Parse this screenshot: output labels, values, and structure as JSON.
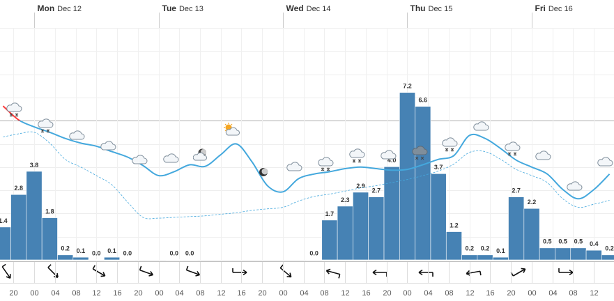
{
  "chart_data": {
    "type": "meteogram",
    "xlim": [
      -6.59,
      111.87
    ],
    "xticks": [
      {
        "value": -4,
        "label": "20"
      },
      {
        "value": 0,
        "label": "00"
      },
      {
        "value": 4,
        "label": "04"
      },
      {
        "value": 8,
        "label": "08"
      },
      {
        "value": 12,
        "label": "12"
      },
      {
        "value": 16,
        "label": "16"
      },
      {
        "value": 20,
        "label": "20"
      },
      {
        "value": 24,
        "label": "00"
      },
      {
        "value": 28,
        "label": "04"
      },
      {
        "value": 32,
        "label": "08"
      },
      {
        "value": 36,
        "label": "12"
      },
      {
        "value": 40,
        "label": "16"
      },
      {
        "value": 44,
        "label": "20"
      },
      {
        "value": 48,
        "label": "00"
      },
      {
        "value": 52,
        "label": "04"
      },
      {
        "value": 56,
        "label": "08"
      },
      {
        "value": 60,
        "label": "12"
      },
      {
        "value": 64,
        "label": "16"
      },
      {
        "value": 68,
        "label": "20"
      },
      {
        "value": 72,
        "label": "00"
      },
      {
        "value": 76,
        "label": "04"
      },
      {
        "value": 80,
        "label": "08"
      },
      {
        "value": 84,
        "label": "12"
      },
      {
        "value": 88,
        "label": "16"
      },
      {
        "value": 92,
        "label": "20"
      },
      {
        "value": 96,
        "label": "00"
      },
      {
        "value": 100,
        "label": "04"
      },
      {
        "value": 104,
        "label": "08"
      },
      {
        "value": 108,
        "label": "12"
      }
    ],
    "days": [
      {
        "value": 0,
        "day": "Mon",
        "date": "Dec 12"
      },
      {
        "value": 24,
        "day": "Tue",
        "date": "Dec 13"
      },
      {
        "value": 48,
        "day": "Wed",
        "date": "Dec 14"
      },
      {
        "value": 72,
        "day": "Thu",
        "date": "Dec 15"
      },
      {
        "value": 96,
        "day": "Fri",
        "date": "Dec 16"
      }
    ],
    "ylim": [
      0,
      10
    ],
    "yticks": [
      0,
      1,
      2,
      3,
      4,
      5,
      6,
      7,
      8,
      9,
      10
    ],
    "y2lim": [
      -18,
      12
    ],
    "y2ticks": [
      0
    ],
    "series": [
      {
        "type": "bar",
        "color": "#4682b4",
        "x": [
          -6,
          -3,
          0,
          3,
          6,
          9,
          12,
          15,
          18,
          27,
          30,
          54,
          57,
          60,
          63,
          66,
          69,
          72,
          75,
          78,
          81,
          84,
          87,
          90,
          93,
          96,
          99,
          102,
          105,
          108,
          111
        ],
        "values": [
          1.4,
          2.8,
          3.8,
          1.8,
          0.2,
          0.1,
          0.0,
          0.1,
          0.0,
          0.0,
          0.0,
          0.0,
          1.7,
          2.3,
          2.9,
          2.7,
          4.0,
          7.2,
          6.6,
          3.7,
          1.2,
          0.2,
          0.2,
          0.1,
          2.7,
          2.2,
          0.5,
          0.5,
          0.5,
          0.4,
          0.2
        ],
        "value_labels": [
          "1.4",
          "2.8",
          "3.8",
          "1.8",
          "0.2",
          "0.1",
          "0.0",
          "0.1",
          "0.0",
          "0.0",
          "0.0",
          "0.0",
          "1.7",
          "2.3",
          "2.9",
          "2.7",
          "4.0",
          "7.2",
          "6.6",
          "3.7",
          "1.2",
          "0.2",
          "0.2",
          "0.1",
          "2.7",
          "2.2",
          "0.5",
          "0.5",
          "0.5",
          "0.4",
          "0.2"
        ]
      },
      {
        "type": "line",
        "axis": "y2",
        "color": "#44a8dd",
        "color_above_zero": "#ff3b3b",
        "dashed": false,
        "x": [
          -6,
          -3,
          0,
          3,
          6,
          9,
          12,
          15,
          18,
          21,
          24,
          27,
          30,
          33,
          36,
          39,
          42,
          45,
          48,
          51,
          54,
          57,
          60,
          63,
          66,
          69,
          72,
          75,
          78,
          81,
          84,
          87,
          90,
          93,
          96,
          99,
          102,
          105,
          108,
          111
        ],
        "values": [
          1.9,
          0.1,
          -0.8,
          -1.5,
          -2.3,
          -2.9,
          -3.3,
          -4.0,
          -4.7,
          -5.8,
          -7.1,
          -6.6,
          -5.7,
          -5.9,
          -4.4,
          -3.0,
          -5.3,
          -8.4,
          -9.2,
          -7.5,
          -6.9,
          -6.6,
          -6.2,
          -6.0,
          -6.2,
          -6.4,
          -6.3,
          -5.7,
          -5.0,
          -4.5,
          -1.9,
          -2.3,
          -3.6,
          -5.1,
          -6.0,
          -6.9,
          -8.9,
          -10.1,
          -8.9,
          -6.9
        ]
      },
      {
        "type": "line",
        "axis": "y2",
        "color": "#44a8dd",
        "dashed": true,
        "x": [
          -6,
          -3,
          0,
          3,
          6,
          9,
          12,
          15,
          18,
          21,
          24,
          27,
          30,
          33,
          36,
          39,
          42,
          45,
          48,
          51,
          54,
          57,
          60,
          63,
          66,
          69,
          72,
          75,
          78,
          81,
          84,
          87,
          90,
          93,
          96,
          99,
          102,
          105,
          108,
          111
        ],
        "values": [
          -2.1,
          -1.7,
          -1.5,
          -2.9,
          -5.0,
          -6.0,
          -7.1,
          -8.3,
          -10.5,
          -12.5,
          -12.6,
          -12.5,
          -12.4,
          -12.3,
          -12.1,
          -11.9,
          -11.6,
          -11.4,
          -11.2,
          -10.4,
          -9.8,
          -9.5,
          -9.1,
          -8.7,
          -8.4,
          -8.0,
          -7.6,
          -7.1,
          -6.5,
          -5.6,
          -4.1,
          -4.0,
          -5.0,
          -6.3,
          -7.1,
          -8.0,
          -10.1,
          -11.2,
          -10.8,
          -10.3
        ]
      }
    ]
  }
}
